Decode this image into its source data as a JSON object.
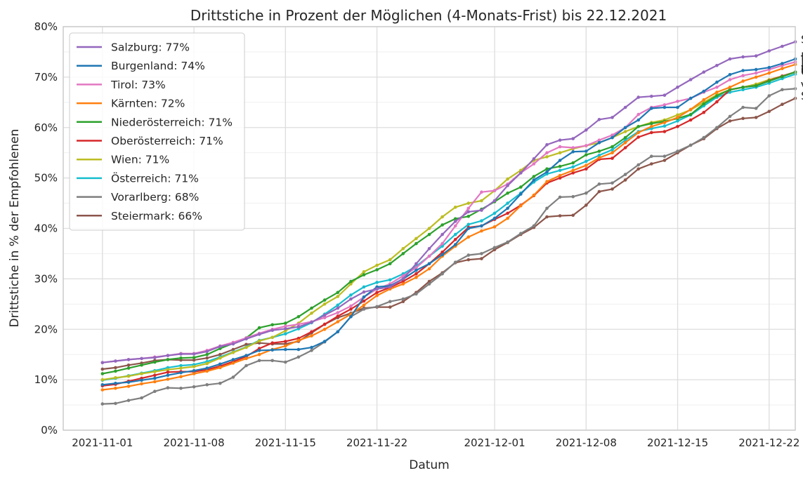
{
  "chart_data": {
    "type": "line",
    "title": "Drittstiche in Prozent der Möglichen (4-Monats-Frist) bis 22.12.2021",
    "xlabel": "Datum",
    "ylabel": "Drittstiche in % der Empfohlenen",
    "x_start": "2021-11-01",
    "x_end": "2021-12-22",
    "xlim": [
      "2021-10-29",
      "2021-12-24"
    ],
    "x_ticks": [
      "2021-11-01",
      "2021-11-08",
      "2021-11-15",
      "2021-11-22",
      "2021-12-01",
      "2021-12-08",
      "2021-12-15",
      "2021-12-22"
    ],
    "ylim": [
      0,
      80
    ],
    "y_ticks": [
      "0%",
      "10%",
      "20%",
      "30%",
      "40%",
      "50%",
      "60%",
      "70%",
      "80%"
    ],
    "grid": true,
    "legend_position": "top-left",
    "series": [
      {
        "name": "Salzburg: 77%",
        "end_label": "Sa",
        "color": "#9467bd",
        "values": [
          13.4,
          13.7,
          14.0,
          14.2,
          14.4,
          14.8,
          15.1,
          15.1,
          15.6,
          16.6,
          17.1,
          18.1,
          19.0,
          19.8,
          20.1,
          20.5,
          21.4,
          22.8,
          24.2,
          26.0,
          27.4,
          28.0,
          28.4,
          30.0,
          33.0,
          36.0,
          38.8,
          41.4,
          43.3,
          43.6,
          45.5,
          48.5,
          51.0,
          53.8,
          56.6,
          57.5,
          57.8,
          59.5,
          61.6,
          62.0,
          64.0,
          66.0,
          66.2,
          66.4,
          68.0,
          69.5,
          71.0,
          72.3,
          73.6,
          74.0,
          74.2,
          75.2,
          76.1,
          77.0
        ]
      },
      {
        "name": "Burgenland: 74%",
        "end_label": "B",
        "color": "#1f77b4",
        "values": [
          9.0,
          9.3,
          9.5,
          9.9,
          10.3,
          10.9,
          11.4,
          11.8,
          12.3,
          13.1,
          14.0,
          14.8,
          15.8,
          15.9,
          16.0,
          16.0,
          16.4,
          17.6,
          19.5,
          22.5,
          26.4,
          28.4,
          28.6,
          30.0,
          31.7,
          33.0,
          34.8,
          36.8,
          40.0,
          40.5,
          42.0,
          44.0,
          46.8,
          49.6,
          51.2,
          53.5,
          55.2,
          55.3,
          57.0,
          58.0,
          60.0,
          61.5,
          63.8,
          64.0,
          64.0,
          65.8,
          67.2,
          69.0,
          70.5,
          71.3,
          71.5,
          71.9,
          72.7,
          73.6
        ]
      },
      {
        "name": "Tirol: 73%",
        "end_label": "T",
        "color": "#e377c2",
        "values": [
          13.4,
          13.7,
          14.0,
          14.2,
          14.5,
          14.8,
          15.2,
          15.2,
          15.8,
          16.7,
          17.4,
          18.3,
          19.2,
          20.0,
          20.6,
          21.0,
          21.5,
          22.3,
          23.3,
          24.6,
          26.4,
          28.0,
          29.0,
          30.6,
          32.2,
          34.5,
          37.0,
          40.5,
          44.0,
          47.2,
          47.5,
          48.8,
          51.0,
          52.8,
          55.0,
          56.2,
          56.0,
          56.4,
          57.5,
          58.5,
          60.0,
          62.6,
          64.0,
          64.5,
          65.2,
          65.8,
          67.0,
          68.0,
          69.5,
          70.3,
          70.8,
          71.5,
          72.3,
          73.0
        ]
      },
      {
        "name": "Kärnten: 72%",
        "end_label": "K",
        "color": "#ff7f0e",
        "values": [
          8.0,
          8.3,
          8.7,
          9.2,
          9.6,
          10.1,
          10.6,
          11.2,
          11.7,
          12.4,
          13.3,
          14.2,
          15.0,
          16.0,
          16.7,
          17.8,
          18.7,
          20.0,
          21.5,
          23.0,
          24.8,
          26.7,
          28.0,
          29.0,
          30.3,
          32.0,
          34.5,
          36.5,
          38.3,
          39.5,
          40.3,
          42.0,
          44.5,
          46.6,
          49.3,
          50.5,
          51.5,
          52.5,
          54.0,
          55.0,
          57.0,
          59.0,
          60.2,
          61.0,
          62.0,
          63.6,
          65.5,
          67.0,
          68.0,
          69.2,
          70.0,
          70.8,
          71.7,
          72.5
        ]
      },
      {
        "name": "Niederösterreich: 71%",
        "end_label": "N",
        "color": "#2ca02c",
        "values": [
          11.2,
          11.7,
          12.3,
          12.9,
          13.5,
          14.0,
          14.3,
          14.4,
          15.0,
          16.2,
          17.2,
          18.3,
          20.3,
          20.9,
          21.2,
          22.5,
          24.2,
          25.8,
          27.3,
          29.5,
          30.8,
          31.8,
          33.0,
          35.0,
          37.0,
          38.8,
          40.7,
          41.9,
          42.4,
          43.8,
          45.3,
          47.0,
          48.2,
          50.3,
          51.8,
          52.3,
          53.0,
          54.6,
          55.3,
          56.2,
          58.0,
          60.2,
          60.8,
          61.2,
          61.8,
          62.6,
          64.7,
          66.3,
          67.5,
          68.0,
          68.3,
          69.2,
          70.1,
          71.0
        ]
      },
      {
        "name": "Oberösterreich: 71%",
        "end_label": "O",
        "color": "#d62728",
        "values": [
          8.8,
          9.1,
          9.7,
          10.3,
          10.9,
          11.5,
          11.6,
          11.6,
          12.0,
          12.7,
          13.6,
          14.6,
          16.2,
          17.3,
          17.6,
          18.2,
          19.5,
          21.0,
          22.6,
          24.0,
          25.6,
          27.3,
          28.3,
          29.5,
          31.0,
          33.0,
          35.3,
          37.8,
          40.2,
          40.5,
          41.8,
          43.0,
          44.6,
          46.5,
          49.0,
          50.0,
          51.0,
          51.8,
          53.7,
          53.9,
          56.0,
          58.1,
          59.0,
          59.2,
          60.2,
          61.5,
          63.0,
          65.1,
          67.5,
          68.0,
          68.3,
          69.3,
          70.2,
          71.0
        ]
      },
      {
        "name": "Wien: 71%",
        "end_label": "W",
        "color": "#bcbd22",
        "values": [
          10.0,
          10.4,
          10.7,
          11.2,
          11.6,
          12.0,
          12.3,
          12.6,
          13.2,
          14.3,
          15.4,
          16.4,
          17.7,
          18.4,
          19.7,
          21.2,
          23.2,
          25.0,
          26.5,
          29.0,
          31.4,
          32.7,
          33.8,
          36.0,
          38.0,
          40.0,
          42.3,
          44.2,
          45.0,
          45.5,
          47.5,
          49.8,
          51.5,
          53.5,
          54.2,
          55.0,
          55.8,
          56.4,
          57.0,
          58.0,
          59.2,
          60.2,
          61.0,
          61.5,
          62.5,
          63.5,
          65.0,
          66.5,
          67.5,
          68.0,
          68.6,
          69.5,
          70.2,
          71.0
        ]
      },
      {
        "name": "Österreich: 71%",
        "end_label": "Ö",
        "color": "#17becf",
        "values": [
          9.9,
          10.3,
          10.8,
          11.3,
          11.8,
          12.4,
          12.8,
          13.0,
          13.6,
          14.5,
          15.5,
          16.5,
          17.8,
          18.4,
          19.1,
          20.1,
          21.3,
          23.0,
          24.8,
          26.8,
          28.4,
          29.3,
          29.8,
          31.0,
          32.5,
          34.5,
          36.5,
          38.8,
          40.8,
          41.5,
          43.0,
          45.0,
          47.0,
          49.2,
          50.8,
          51.5,
          52.2,
          53.3,
          54.5,
          55.6,
          57.5,
          59.2,
          59.8,
          60.3,
          61.3,
          62.5,
          64.3,
          66.0,
          67.0,
          67.5,
          68.0,
          68.8,
          69.7,
          70.6
        ]
      },
      {
        "name": "Vorarlberg: 68%",
        "end_label": "V",
        "color": "#7f7f7f",
        "values": [
          5.2,
          5.3,
          5.9,
          6.4,
          7.7,
          8.4,
          8.3,
          8.6,
          9.0,
          9.3,
          10.5,
          12.8,
          13.8,
          13.8,
          13.5,
          14.5,
          15.8,
          17.5,
          19.5,
          22.5,
          24.0,
          24.5,
          25.5,
          26.0,
          27.0,
          29.0,
          31.0,
          33.3,
          34.7,
          35.0,
          36.2,
          37.3,
          39.0,
          40.5,
          44.0,
          46.2,
          46.3,
          47.0,
          48.8,
          49.0,
          50.7,
          52.6,
          54.3,
          54.3,
          55.3,
          56.5,
          58.0,
          60.0,
          62.2,
          64.0,
          63.8,
          66.3,
          67.5,
          67.7
        ]
      },
      {
        "name": "Steiermark: 66%",
        "end_label": "St",
        "color": "#8c564b",
        "values": [
          12.1,
          12.4,
          12.9,
          13.3,
          13.8,
          14.0,
          13.9,
          13.9,
          14.3,
          15.0,
          16.0,
          17.0,
          17.3,
          17.1,
          17.1,
          17.6,
          19.3,
          21.0,
          22.3,
          23.2,
          24.2,
          24.4,
          24.4,
          25.5,
          27.3,
          29.5,
          31.2,
          33.2,
          33.8,
          34.0,
          35.8,
          37.2,
          38.8,
          40.2,
          42.3,
          42.5,
          42.6,
          44.6,
          47.3,
          47.8,
          49.6,
          51.8,
          52.8,
          53.5,
          55.0,
          56.5,
          57.8,
          59.8,
          61.3,
          61.8,
          62.0,
          63.2,
          64.6,
          65.8
        ]
      }
    ]
  }
}
